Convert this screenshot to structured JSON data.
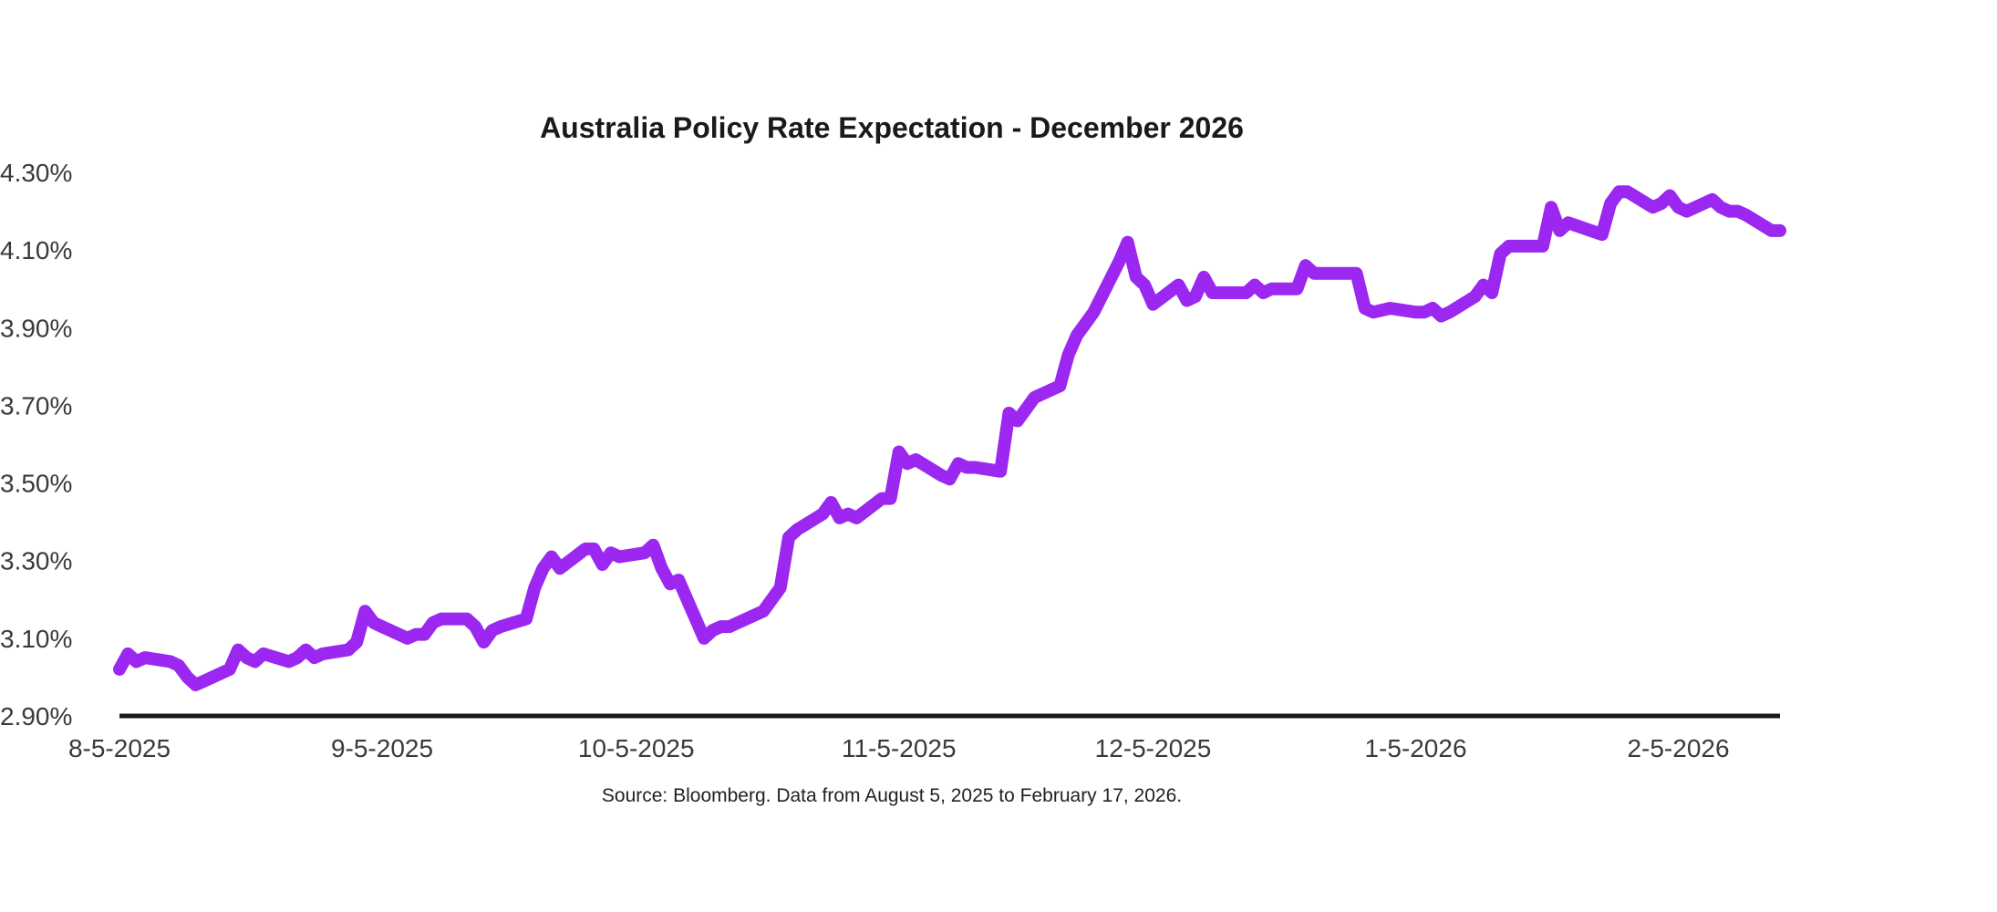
{
  "chart_data": {
    "type": "line",
    "title": "Australia Policy Rate Expectation - December 2026",
    "xlabel": "",
    "ylabel": "",
    "source": "Source: Bloomberg. Data from August 5, 2025 to February 17, 2026.",
    "ylim": [
      2.9,
      4.3
    ],
    "y_ticks": [
      "4.30%",
      "4.10%",
      "3.90%",
      "3.70%",
      "3.50%",
      "3.30%",
      "3.10%",
      "2.90%"
    ],
    "x_ticks": [
      "8-5-2025",
      "9-5-2025",
      "10-5-2025",
      "11-5-2025",
      "12-5-2025",
      "1-5-2026",
      "2-5-2026"
    ],
    "x_range": [
      "2025-08-05",
      "2026-02-17"
    ],
    "grid": false,
    "colors": {
      "series": "#9B27F0",
      "axis": "#1a1a1a",
      "text": "#3a3a3a"
    },
    "series": [
      {
        "x": [
          "2025-08-05",
          "2025-08-06",
          "2025-08-07",
          "2025-08-08",
          "2025-08-11",
          "2025-08-12",
          "2025-08-13",
          "2025-08-14",
          "2025-08-15",
          "2025-08-18",
          "2025-08-19",
          "2025-08-20",
          "2025-08-21",
          "2025-08-22",
          "2025-08-25",
          "2025-08-26",
          "2025-08-27",
          "2025-08-28",
          "2025-08-29",
          "2025-09-01",
          "2025-09-02",
          "2025-09-03",
          "2025-09-04",
          "2025-09-05",
          "2025-09-08",
          "2025-09-09",
          "2025-09-10",
          "2025-09-11",
          "2025-09-12",
          "2025-09-15",
          "2025-09-16",
          "2025-09-17",
          "2025-09-18",
          "2025-09-19",
          "2025-09-22",
          "2025-09-23",
          "2025-09-24",
          "2025-09-25",
          "2025-09-26",
          "2025-09-29",
          "2025-09-30",
          "2025-10-01",
          "2025-10-02",
          "2025-10-03",
          "2025-10-06",
          "2025-10-07",
          "2025-10-08",
          "2025-10-09",
          "2025-10-10",
          "2025-10-13",
          "2025-10-14",
          "2025-10-15",
          "2025-10-16",
          "2025-10-17",
          "2025-10-20",
          "2025-10-21",
          "2025-10-22",
          "2025-10-23",
          "2025-10-24",
          "2025-10-27",
          "2025-10-28",
          "2025-10-29",
          "2025-10-30",
          "2025-10-31",
          "2025-11-03",
          "2025-11-04",
          "2025-11-05",
          "2025-11-06",
          "2025-11-07",
          "2025-11-10",
          "2025-11-11",
          "2025-11-12",
          "2025-11-13",
          "2025-11-14",
          "2025-11-17",
          "2025-11-18",
          "2025-11-19",
          "2025-11-20",
          "2025-11-21",
          "2025-11-24",
          "2025-11-25",
          "2025-11-26",
          "2025-11-27",
          "2025-11-28",
          "2025-12-01",
          "2025-12-02",
          "2025-12-03",
          "2025-12-04",
          "2025-12-05",
          "2025-12-08",
          "2025-12-09",
          "2025-12-10",
          "2025-12-11",
          "2025-12-12",
          "2025-12-15",
          "2025-12-16",
          "2025-12-17",
          "2025-12-18",
          "2025-12-19",
          "2025-12-22",
          "2025-12-23",
          "2025-12-24",
          "2025-12-29",
          "2025-12-30",
          "2025-12-31",
          "2026-01-02",
          "2026-01-05",
          "2026-01-06",
          "2026-01-07",
          "2026-01-08",
          "2026-01-09",
          "2026-01-12",
          "2026-01-13",
          "2026-01-14",
          "2026-01-15",
          "2026-01-16",
          "2026-01-19",
          "2026-01-20",
          "2026-01-21",
          "2026-01-22",
          "2026-01-23",
          "2026-01-27",
          "2026-01-28",
          "2026-01-29",
          "2026-01-30",
          "2026-02-02",
          "2026-02-03",
          "2026-02-04",
          "2026-02-05",
          "2026-02-06",
          "2026-02-09",
          "2026-02-10",
          "2026-02-11",
          "2026-02-12",
          "2026-02-13",
          "2026-02-16",
          "2026-02-17"
        ],
        "values": [
          3.02,
          3.06,
          3.04,
          3.05,
          3.04,
          3.03,
          3.0,
          2.98,
          2.99,
          3.02,
          3.07,
          3.05,
          3.04,
          3.06,
          3.04,
          3.05,
          3.07,
          3.05,
          3.06,
          3.07,
          3.09,
          3.17,
          3.14,
          3.13,
          3.1,
          3.11,
          3.11,
          3.14,
          3.15,
          3.15,
          3.13,
          3.09,
          3.12,
          3.13,
          3.15,
          3.23,
          3.28,
          3.31,
          3.28,
          3.33,
          3.33,
          3.29,
          3.32,
          3.31,
          3.32,
          3.34,
          3.28,
          3.24,
          3.25,
          3.1,
          3.12,
          3.13,
          3.13,
          3.14,
          3.17,
          3.2,
          3.23,
          3.36,
          3.38,
          3.42,
          3.45,
          3.41,
          3.42,
          3.41,
          3.46,
          3.46,
          3.58,
          3.55,
          3.56,
          3.52,
          3.51,
          3.55,
          3.54,
          3.54,
          3.53,
          3.68,
          3.66,
          3.69,
          3.72,
          3.75,
          3.83,
          3.88,
          3.91,
          3.94,
          4.07,
          4.12,
          4.03,
          4.01,
          3.96,
          4.01,
          3.97,
          3.98,
          4.03,
          3.99,
          3.99,
          3.99,
          4.01,
          3.99,
          4.0,
          4.0,
          4.06,
          4.04,
          4.04,
          3.95,
          3.94,
          3.95,
          3.94,
          3.94,
          3.95,
          3.93,
          3.94,
          3.98,
          4.01,
          3.99,
          4.09,
          4.11,
          4.11,
          4.11,
          4.21,
          4.15,
          4.17,
          4.14,
          4.22,
          4.25,
          4.25,
          4.21,
          4.22,
          4.24,
          4.21,
          4.2,
          4.23,
          4.21,
          4.2,
          4.2,
          4.19,
          4.15,
          4.15
        ]
      }
    ]
  }
}
